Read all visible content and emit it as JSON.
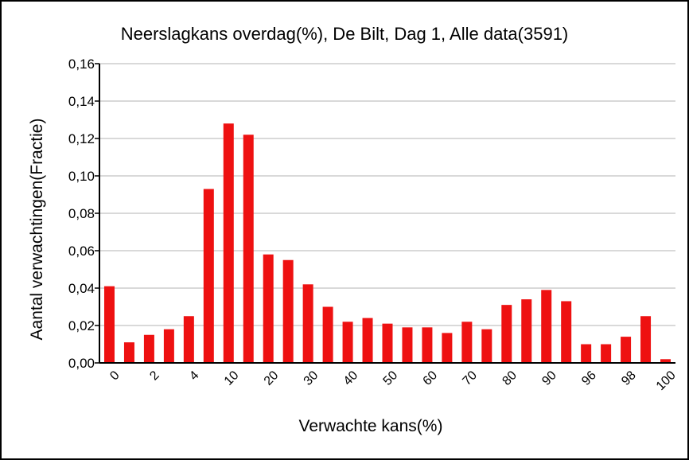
{
  "chart_data": {
    "type": "bar",
    "title": "Neerslagkans overdag(%), De Bilt, Dag 1, Alle data(3591)",
    "xlabel": "Verwachte kans(%)",
    "ylabel": "Aantal verwachtingen(Fractie)",
    "ylim": [
      0,
      0.16
    ],
    "yticks": [
      "0,00",
      "0,02",
      "0,04",
      "0,06",
      "0,08",
      "0,10",
      "0,12",
      "0,14",
      "0,16"
    ],
    "xtick_labels": [
      "0",
      "2",
      "4",
      "10",
      "20",
      "30",
      "40",
      "50",
      "60",
      "70",
      "80",
      "90",
      "96",
      "98",
      "100"
    ],
    "grid": "horizontal",
    "bar_color": "#ee1111",
    "values": [
      0.041,
      0.011,
      0.015,
      0.018,
      0.025,
      0.093,
      0.128,
      0.122,
      0.058,
      0.055,
      0.042,
      0.03,
      0.022,
      0.024,
      0.021,
      0.019,
      0.019,
      0.016,
      0.022,
      0.018,
      0.031,
      0.034,
      0.039,
      0.033,
      0.01,
      0.01,
      0.014,
      0.025,
      0.002
    ]
  }
}
